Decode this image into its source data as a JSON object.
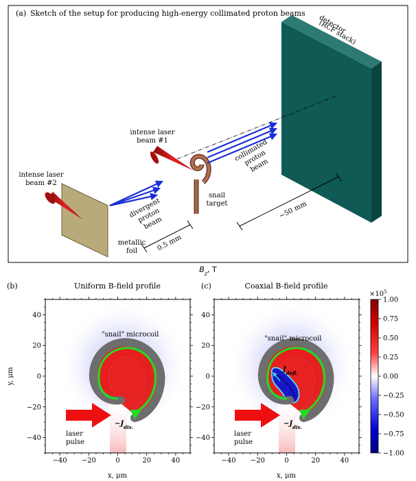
{
  "panel_a": {
    "label": "(a)",
    "title": "Sketch of the setup for producing high-energy collimated proton beams",
    "detector_line1": "detector",
    "detector_line2": "(RCF stack)",
    "laser1_line1": "intense laser",
    "laser1_line2": "beam #1",
    "laser2_line1": "intense laser",
    "laser2_line2": "beam #2",
    "collimated_line1": "collimated",
    "collimated_line2": "proton",
    "collimated_line3": "beam",
    "divergent_line1": "divergent",
    "divergent_line2": "proton",
    "divergent_line3": "beam",
    "snail_line1": "snail",
    "snail_line2": "target",
    "foil_line1": "metallic",
    "foil_line2": "foil",
    "dist_foil": "0.5 mm",
    "dist_detector": "~50 mm"
  },
  "field_label": "B_z, T",
  "panel_b": {
    "label": "(b)",
    "title": "Uniform B-field profile",
    "microcoil": "\"snail\" microcoil",
    "laser_line1": "laser",
    "laser_line2": "pulse",
    "jdis": "−J",
    "jdis_sub": "dis.",
    "xlabel": "x, μm",
    "ylabel": "y, μm"
  },
  "panel_c": {
    "label": "(c)",
    "title": "Coaxial B-field profile",
    "microcoil": "\"snail\" microcoil",
    "laser_line1": "laser",
    "laser_line2": "pulse",
    "jdis": "−J",
    "jdis_sub": "dis.",
    "jdefl": "J",
    "jdefl_sub": "defl.",
    "xlabel": "x, μm"
  },
  "axes": {
    "x_ticks": [
      "−40",
      "−20",
      "0",
      "20",
      "40"
    ],
    "y_ticks": [
      "40",
      "20",
      "0",
      "−20",
      "−40"
    ],
    "range": [
      -50,
      50
    ]
  },
  "colorbar": {
    "multiplier": "×10",
    "exponent": "5",
    "ticks": [
      "1.00",
      "0.75",
      "0.50",
      "0.25",
      "0.00",
      "−0.25",
      "−0.50",
      "−0.75",
      "−1.00"
    ]
  },
  "colors": {
    "detector": "#0f5a55",
    "foil": "#b8aa7a",
    "snail": "#9a5a3f",
    "laser": "#d01818",
    "proton": "#1a2fd8",
    "coil_gray": "#6e6e6e",
    "coil_green": "#22dd22"
  }
}
